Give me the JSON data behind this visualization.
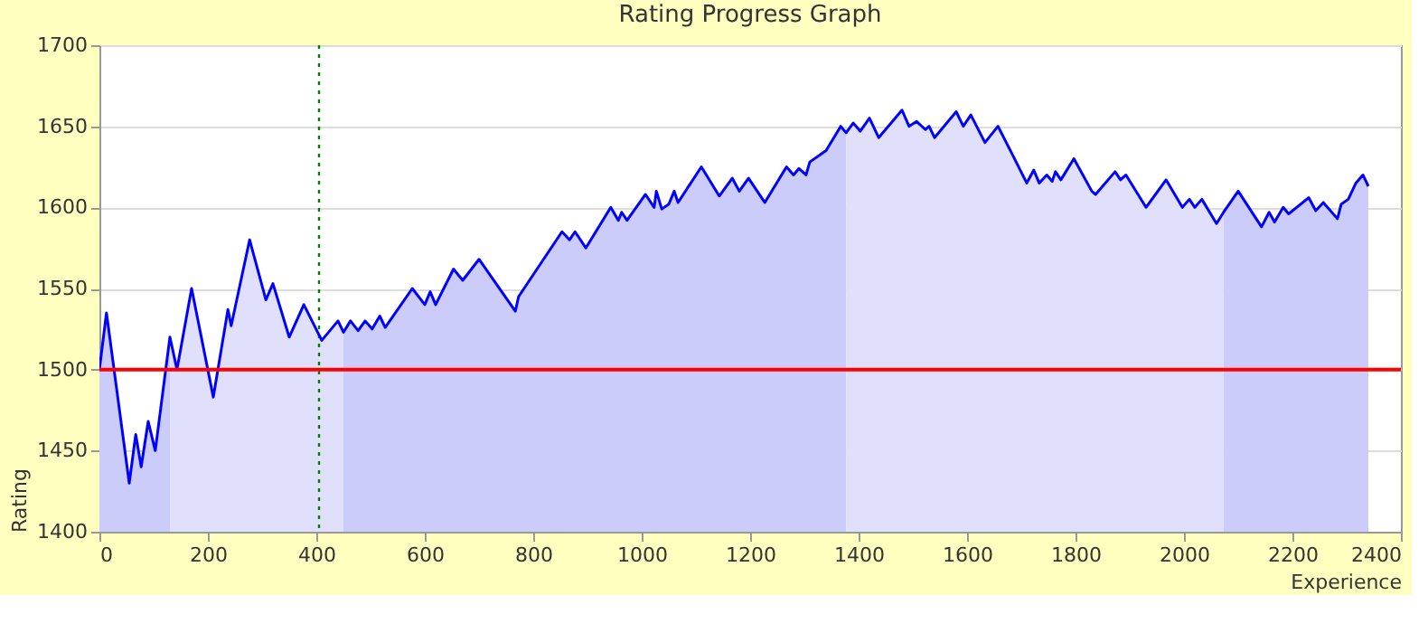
{
  "chart_data": {
    "type": "line",
    "title": "Rating Progress Graph",
    "xlabel": "Experience",
    "ylabel": "Rating",
    "xlim": [
      0,
      2400
    ],
    "xticks": [
      0,
      200,
      400,
      600,
      800,
      1000,
      1200,
      1400,
      1600,
      1800,
      2000,
      2200,
      2400
    ],
    "ylim": [
      1400,
      1700
    ],
    "yticks": [
      1400,
      1450,
      1500,
      1550,
      1600,
      1650,
      1700
    ],
    "grid": "y",
    "ref_lines": [
      {
        "axis": "y",
        "value": 1500,
        "color": "#ff0000",
        "line_style": "solid"
      },
      {
        "axis": "x",
        "value": 405,
        "color": "#008000",
        "line_style": "dotted"
      }
    ],
    "series": [
      {
        "type": "area",
        "color": "#ccccfa",
        "x": [
          0,
          13,
          55,
          67,
          77,
          90,
          103,
          130
        ],
        "values": [
          1500,
          1535,
          1430,
          1460,
          1440,
          1468,
          1450,
          1520
        ]
      },
      {
        "type": "area",
        "color": "#e0e0fc",
        "x": [
          130,
          143,
          170,
          210,
          237,
          243,
          277,
          307,
          320,
          350,
          377,
          410,
          440,
          450
        ],
        "values": [
          1520,
          1500,
          1550,
          1483,
          1537,
          1527,
          1580,
          1543,
          1553,
          1520,
          1540,
          1518,
          1530,
          1523
        ]
      },
      {
        "type": "area",
        "color": "#ccccfa",
        "x": [
          450,
          463,
          477,
          490,
          503,
          517,
          527,
          577,
          600,
          610,
          620,
          653,
          670,
          700,
          767,
          773,
          853,
          867,
          877,
          897,
          943,
          957,
          963,
          973,
          1007,
          1023,
          1027,
          1037,
          1050,
          1060,
          1067,
          1110,
          1143,
          1167,
          1180,
          1197,
          1227,
          1267,
          1280,
          1290,
          1303,
          1310,
          1340,
          1367,
          1377
        ],
        "values": [
          1523,
          1530,
          1524,
          1530,
          1525,
          1533,
          1526,
          1550,
          1540,
          1548,
          1540,
          1562,
          1555,
          1568,
          1536,
          1545,
          1585,
          1580,
          1585,
          1575,
          1600,
          1592,
          1597,
          1592,
          1608,
          1600,
          1610,
          1599,
          1602,
          1610,
          1603,
          1625,
          1607,
          1618,
          1610,
          1618,
          1603,
          1625,
          1620,
          1624,
          1620,
          1628,
          1635,
          1650,
          1646
        ]
      },
      {
        "type": "area",
        "color": "#e0e0fc",
        "x": [
          1377,
          1390,
          1403,
          1420,
          1437,
          1480,
          1493,
          1507,
          1523,
          1530,
          1540,
          1580,
          1593,
          1607,
          1633,
          1657,
          1683,
          1710,
          1723,
          1733,
          1747,
          1757,
          1763,
          1773,
          1797,
          1830,
          1837,
          1873,
          1883,
          1893,
          1930,
          1967,
          1997,
          2010,
          2020,
          2033,
          2060,
          2073
        ],
        "values": [
          1646,
          1652,
          1647,
          1655,
          1643,
          1660,
          1650,
          1653,
          1648,
          1650,
          1643,
          1659,
          1650,
          1657,
          1640,
          1650,
          1633,
          1615,
          1623,
          1615,
          1620,
          1616,
          1622,
          1617,
          1630,
          1610,
          1608,
          1622,
          1617,
          1620,
          1600,
          1617,
          1600,
          1605,
          1600,
          1605,
          1590,
          1597
        ]
      },
      {
        "type": "area",
        "color": "#ccccfa",
        "x": [
          2073,
          2100,
          2143,
          2157,
          2167,
          2183,
          2193,
          2230,
          2243,
          2257,
          2283,
          2290,
          2303,
          2317,
          2330,
          2340
        ],
        "values": [
          1597,
          1610,
          1588,
          1597,
          1591,
          1600,
          1596,
          1606,
          1598,
          1603,
          1593,
          1602,
          1605,
          1615,
          1620,
          1613
        ]
      },
      {
        "color": "#0000ff",
        "x": [
          0,
          13,
          55,
          67,
          77,
          90,
          103,
          130,
          143,
          170,
          210,
          237,
          243,
          277,
          307,
          320,
          350,
          377,
          410,
          440,
          450,
          463,
          477,
          490,
          503,
          517,
          527,
          577,
          600,
          610,
          620,
          653,
          670,
          700,
          767,
          773,
          853,
          867,
          877,
          897,
          943,
          957,
          963,
          973,
          1007,
          1023,
          1027,
          1037,
          1050,
          1060,
          1067,
          1110,
          1143,
          1167,
          1180,
          1197,
          1227,
          1267,
          1280,
          1290,
          1303,
          1310,
          1340,
          1367,
          1377,
          1390,
          1403,
          1420,
          1437,
          1480,
          1493,
          1507,
          1523,
          1530,
          1540,
          1580,
          1593,
          1607,
          1633,
          1657,
          1683,
          1710,
          1723,
          1733,
          1747,
          1757,
          1763,
          1773,
          1797,
          1830,
          1837,
          1873,
          1883,
          1893,
          1930,
          1967,
          1997,
          2010,
          2020,
          2033,
          2060,
          2073,
          2100,
          2143,
          2157,
          2167,
          2183,
          2193,
          2230,
          2243,
          2257,
          2283,
          2290,
          2303,
          2317,
          2330,
          2340
        ],
        "values": [
          1500,
          1535,
          1430,
          1460,
          1440,
          1468,
          1450,
          1520,
          1500,
          1550,
          1483,
          1537,
          1527,
          1580,
          1543,
          1553,
          1520,
          1540,
          1518,
          1530,
          1523,
          1530,
          1524,
          1530,
          1525,
          1533,
          1526,
          1550,
          1540,
          1548,
          1540,
          1562,
          1555,
          1568,
          1536,
          1545,
          1585,
          1580,
          1585,
          1575,
          1600,
          1592,
          1597,
          1592,
          1608,
          1600,
          1610,
          1599,
          1602,
          1610,
          1603,
          1625,
          1607,
          1618,
          1610,
          1618,
          1603,
          1625,
          1620,
          1624,
          1620,
          1628,
          1635,
          1650,
          1646,
          1652,
          1647,
          1655,
          1643,
          1660,
          1650,
          1653,
          1648,
          1650,
          1643,
          1659,
          1650,
          1657,
          1640,
          1650,
          1633,
          1615,
          1623,
          1615,
          1620,
          1616,
          1622,
          1617,
          1630,
          1610,
          1608,
          1622,
          1617,
          1620,
          1600,
          1617,
          1600,
          1605,
          1600,
          1605,
          1590,
          1597,
          1610,
          1588,
          1597,
          1591,
          1600,
          1596,
          1606,
          1598,
          1603,
          1593,
          1602,
          1605,
          1615,
          1620,
          1613
        ]
      }
    ]
  }
}
